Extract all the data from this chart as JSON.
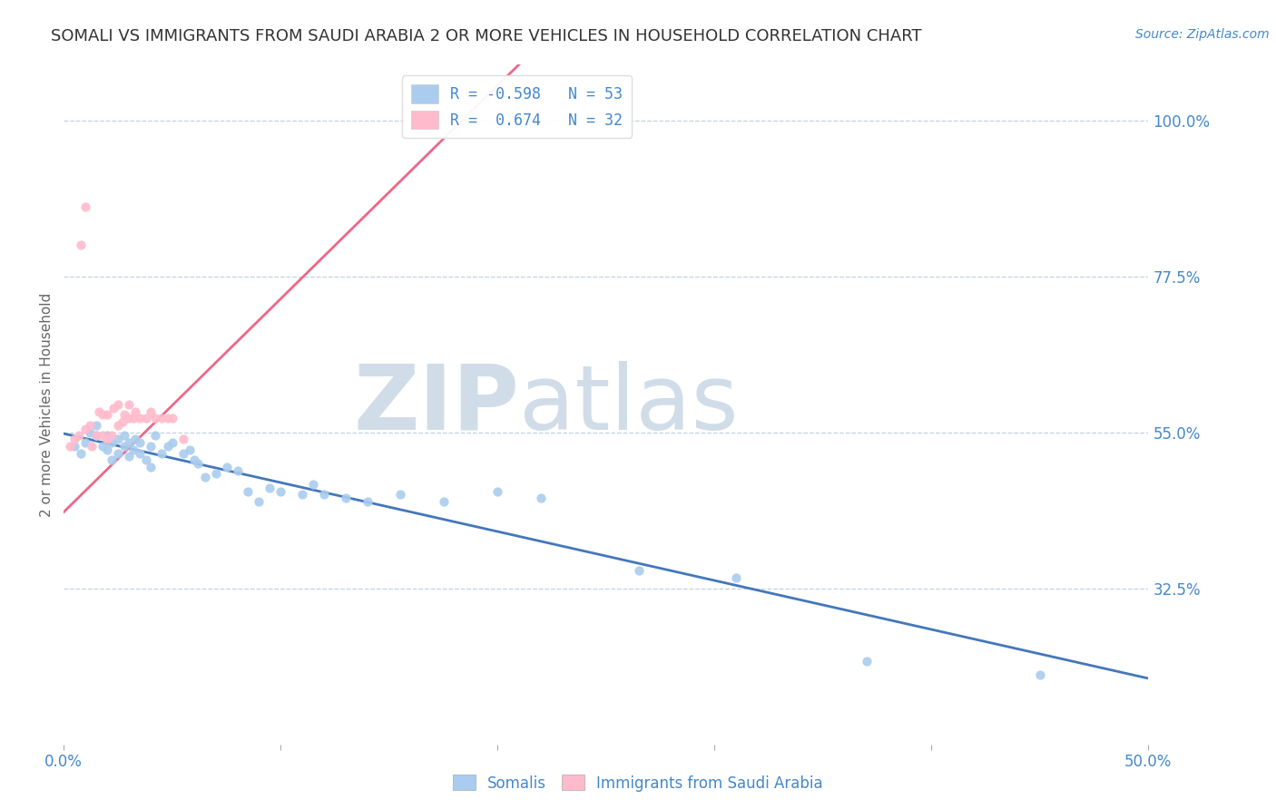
{
  "title": "SOMALI VS IMMIGRANTS FROM SAUDI ARABIA 2 OR MORE VEHICLES IN HOUSEHOLD CORRELATION CHART",
  "source_text": "Source: ZipAtlas.com",
  "ylabel": "2 or more Vehicles in Household",
  "legend_label1": "Somalis",
  "legend_label2": "Immigrants from Saudi Arabia",
  "R1": -0.598,
  "N1": 53,
  "R2": 0.674,
  "N2": 32,
  "color1": "#aaccee",
  "color2": "#ffbbcc",
  "line_color1": "#4477bb",
  "line_color2": "#ee6688",
  "xlim": [
    0.0,
    0.5
  ],
  "ylim": [
    0.1,
    1.08
  ],
  "yticks": [
    0.325,
    0.55,
    0.775,
    1.0
  ],
  "ytick_labels": [
    "32.5%",
    "55.0%",
    "77.5%",
    "100.0%"
  ],
  "xtick_labels_show": [
    "0.0%",
    "50.0%"
  ],
  "xticks_show": [
    0.0,
    0.5
  ],
  "title_color": "#333333",
  "tick_color": "#4488cc",
  "grid_color": "#bbccdd",
  "watermark_zip": "ZIP",
  "watermark_atlas": "atlas",
  "watermark_color": "#d0dde8",
  "somali_x": [
    0.005,
    0.008,
    0.01,
    0.012,
    0.015,
    0.015,
    0.018,
    0.02,
    0.02,
    0.022,
    0.022,
    0.025,
    0.025,
    0.028,
    0.028,
    0.03,
    0.03,
    0.032,
    0.033,
    0.035,
    0.035,
    0.038,
    0.04,
    0.04,
    0.042,
    0.045,
    0.048,
    0.05,
    0.055,
    0.058,
    0.06,
    0.062,
    0.065,
    0.07,
    0.075,
    0.08,
    0.085,
    0.09,
    0.095,
    0.1,
    0.11,
    0.115,
    0.12,
    0.13,
    0.14,
    0.155,
    0.175,
    0.2,
    0.22,
    0.265,
    0.31,
    0.37,
    0.45
  ],
  "somali_y": [
    0.53,
    0.52,
    0.535,
    0.55,
    0.545,
    0.56,
    0.53,
    0.525,
    0.545,
    0.51,
    0.535,
    0.52,
    0.54,
    0.53,
    0.545,
    0.515,
    0.535,
    0.525,
    0.54,
    0.52,
    0.535,
    0.51,
    0.5,
    0.53,
    0.545,
    0.52,
    0.53,
    0.535,
    0.52,
    0.525,
    0.51,
    0.505,
    0.485,
    0.49,
    0.5,
    0.495,
    0.465,
    0.45,
    0.47,
    0.465,
    0.46,
    0.475,
    0.46,
    0.455,
    0.45,
    0.46,
    0.45,
    0.465,
    0.455,
    0.35,
    0.34,
    0.22,
    0.2
  ],
  "saudi_x": [
    0.003,
    0.005,
    0.007,
    0.008,
    0.01,
    0.012,
    0.013,
    0.015,
    0.016,
    0.018,
    0.018,
    0.02,
    0.02,
    0.022,
    0.023,
    0.025,
    0.025,
    0.027,
    0.028,
    0.03,
    0.03,
    0.032,
    0.033,
    0.035,
    0.038,
    0.04,
    0.042,
    0.045,
    0.048,
    0.05,
    0.055,
    0.01
  ],
  "saudi_y": [
    0.53,
    0.54,
    0.545,
    0.82,
    0.555,
    0.56,
    0.53,
    0.545,
    0.58,
    0.545,
    0.575,
    0.54,
    0.575,
    0.545,
    0.585,
    0.56,
    0.59,
    0.565,
    0.575,
    0.57,
    0.59,
    0.57,
    0.58,
    0.57,
    0.57,
    0.58,
    0.57,
    0.57,
    0.57,
    0.57,
    0.54,
    0.875
  ],
  "background_color": "#ffffff"
}
